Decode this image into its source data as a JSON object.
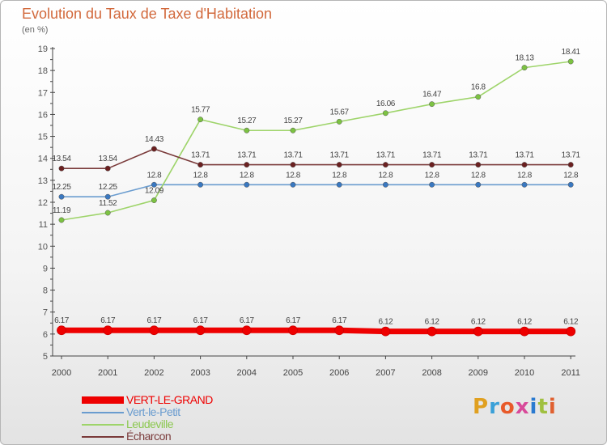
{
  "chart_data": {
    "type": "line",
    "title": "Evolution du Taux de Taxe d'Habitation",
    "subtitle": "(en %)",
    "categories": [
      "2000",
      "2001",
      "2002",
      "2003",
      "2004",
      "2005",
      "2006",
      "2007",
      "2008",
      "2009",
      "2010",
      "2011"
    ],
    "ylim": [
      5,
      19
    ],
    "yticks": [
      5,
      6,
      7,
      8,
      9,
      10,
      11,
      12,
      13,
      14,
      15,
      16,
      17,
      18,
      19
    ],
    "grid": false,
    "legend_position": "bottom-left",
    "series": [
      {
        "name": "VERT-LE-GRAND",
        "color": "#ee0000",
        "marker_color": "#ee0000",
        "emphasis": "thick",
        "values": [
          6.17,
          6.17,
          6.17,
          6.17,
          6.17,
          6.17,
          6.17,
          6.12,
          6.12,
          6.12,
          6.12,
          6.12
        ],
        "labels": [
          "6.17",
          "6.17",
          "6.17",
          "6.17",
          "6.17",
          "6.17",
          "6.17",
          "6.12",
          "6.12",
          "6.12",
          "6.12",
          "6.12"
        ]
      },
      {
        "name": "Vert-le-Petit",
        "color": "#6a9ccf",
        "marker_color": "#3a78c0",
        "emphasis": "normal",
        "values": [
          12.25,
          12.25,
          12.8,
          12.8,
          12.8,
          12.8,
          12.8,
          12.8,
          12.8,
          12.8,
          12.8,
          12.8
        ],
        "labels": [
          "12.25",
          "12.25",
          "12.8",
          "12.8",
          "12.8",
          "12.8",
          "12.8",
          "12.8",
          "12.8",
          "12.8",
          "12.8",
          "12.8"
        ]
      },
      {
        "name": "Leudeville",
        "color": "#9ed46a",
        "marker_color": "#7cc242",
        "emphasis": "normal",
        "values": [
          11.19,
          11.52,
          12.09,
          15.77,
          15.27,
          15.27,
          15.67,
          16.06,
          16.47,
          16.8,
          18.13,
          18.41
        ],
        "labels": [
          "11.19",
          "11.52",
          "12.09",
          "15.77",
          "15.27",
          "15.27",
          "15.67",
          "16.06",
          "16.47",
          "16.8",
          "18.13",
          "18.41"
        ]
      },
      {
        "name": "Écharcon",
        "color": "#7a3a3a",
        "marker_color": "#6b2020",
        "emphasis": "normal",
        "values": [
          13.54,
          13.54,
          14.43,
          13.71,
          13.71,
          13.71,
          13.71,
          13.71,
          13.71,
          13.71,
          13.71,
          13.71
        ],
        "labels": [
          "13.54",
          "13.54",
          "14.43",
          "13.71",
          "13.71",
          "13.71",
          "13.71",
          "13.71",
          "13.71",
          "13.71",
          "13.71",
          "13.71"
        ]
      }
    ]
  },
  "legend": [
    {
      "label": "VERT-LE-GRAND",
      "color": "#ee0000"
    },
    {
      "label": "Vert-le-Petit",
      "color": "#6a9ccf"
    },
    {
      "label": "Leudeville",
      "color": "#9ed46a"
    },
    {
      "label": "Écharcon",
      "color": "#7a3a3a"
    }
  ],
  "brand": {
    "text": "Proxiti",
    "letter_colors": [
      "#e0a020",
      "#3aa0d8",
      "#e85a2a",
      "#d84a9a",
      "#2a7ad0",
      "#a0c040",
      "#e06030"
    ]
  }
}
